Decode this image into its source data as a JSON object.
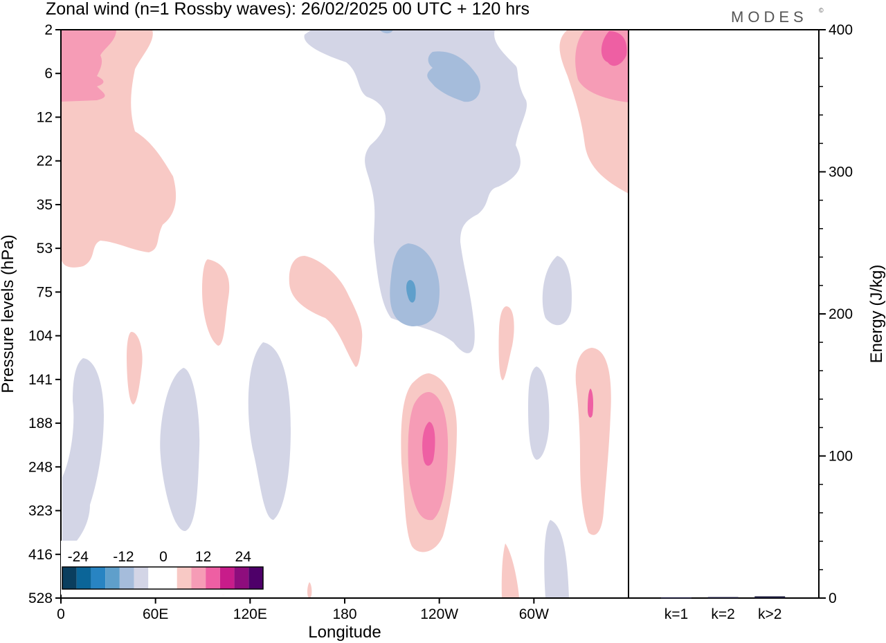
{
  "chart_data": {
    "type": "heatmap",
    "title": "Zonal wind (n=1 Rossby waves):  26/02/2025  00 UTC  + 120 hrs",
    "brand": "MODES",
    "brand_mark": "©",
    "colors": {
      "neg12": "#a5bcdb",
      "neg6": "#d3d5e6",
      "neg18": "#5f9fcb",
      "pos6": "#f8c9c5",
      "pos12": "#f69cb6",
      "pos18": "#ee5fa3",
      "axis": "#000000"
    },
    "xlabel": "Longitude",
    "ylabel": "Pressure levels (hPa)",
    "x_ticks": [
      "0",
      "60E",
      "120E",
      "180",
      "120W",
      "60W"
    ],
    "x_range_deg_east": [
      0,
      360
    ],
    "x_tick_values_deg_east": [
      0,
      60,
      120,
      180,
      240,
      300
    ],
    "y_ticks": [
      "2",
      "6",
      "12",
      "22",
      "35",
      "53",
      "75",
      "104",
      "141",
      "188",
      "248",
      "323",
      "416",
      "528"
    ],
    "y_axis": "pressure levels, top 2 hPa to bottom 528 hPa, labels evenly spaced",
    "colorbar": {
      "labels": [
        "-24",
        "-12",
        "0",
        "12",
        "24"
      ],
      "colors": [
        "#0a3e5e",
        "#0b6598",
        "#2884c2",
        "#5f9fcb",
        "#a5bcdb",
        "#d3d5e6",
        "#ffffff",
        "#ffffff",
        "#f8c9c5",
        "#f69cb6",
        "#ee5fa3",
        "#c81c8a",
        "#8e0d7d",
        "#4e0069"
      ]
    },
    "energy_panel": {
      "type": "bar",
      "ylabel": "Energy (J/kg)",
      "ylim": [
        0,
        400
      ],
      "y_ticks": [
        "0",
        "100",
        "200",
        "300",
        "400"
      ],
      "y_tick_values": [
        0,
        100,
        200,
        300,
        400
      ],
      "categories": [
        "k=1",
        "k=2",
        "k>2"
      ],
      "values": [
        0.5,
        0.7,
        1.2
      ],
      "bar_colors": [
        "#1a1a3a",
        "#1a1a3a",
        "#1a1a3a"
      ]
    }
  }
}
